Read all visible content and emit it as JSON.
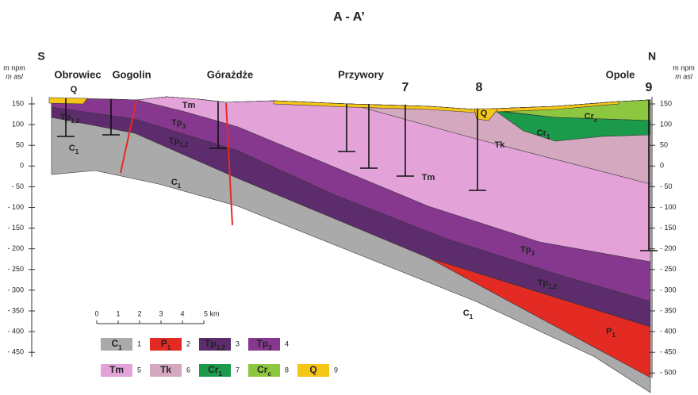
{
  "title": "A - A’",
  "left_axis": {
    "direction": "S",
    "unit": "m npm",
    "unit_alt": "m asl",
    "ticks": [
      "150",
      "100",
      "50",
      "0",
      "- 50",
      "- 100",
      "- 150",
      "- 200",
      "- 250",
      "- 300",
      "- 350",
      "- 400",
      "- 450"
    ]
  },
  "right_axis": {
    "direction": "N",
    "unit": "m npm",
    "unit_alt": "m asl",
    "ticks": [
      "150",
      "100",
      "50",
      "0",
      "- 50",
      "- 100",
      "- 150",
      "- 200",
      "- 250",
      "- 300",
      "- 350",
      "- 400",
      "- 450",
      "- 500"
    ]
  },
  "places": [
    "Obrowiec",
    "Gogolin",
    "Górażdże",
    "Przywory",
    "Opole"
  ],
  "wells": [
    "7",
    "8",
    "9"
  ],
  "map_labels": [
    {
      "base": "Q"
    },
    {
      "base": "Tp",
      "sub": "1,2"
    },
    {
      "base": "C",
      "sub": "1"
    },
    {
      "base": "Tm"
    },
    {
      "base": "Tp",
      "sub": "3"
    },
    {
      "base": "Tp",
      "sub": "1,2"
    },
    {
      "base": "C",
      "sub": "1"
    },
    {
      "base": "Tm"
    },
    {
      "base": "Tk"
    },
    {
      "base": "Q"
    },
    {
      "base": "Cr",
      "sub": "c"
    },
    {
      "base": "Cr",
      "sub": "1"
    },
    {
      "base": "Tp",
      "sub": "3"
    },
    {
      "base": "Tp",
      "sub": "1,2"
    },
    {
      "base": "C",
      "sub": "1"
    },
    {
      "base": "P",
      "sub": "1"
    }
  ],
  "scale": [
    "0",
    "1",
    "2",
    "3",
    "4",
    "5 km"
  ],
  "legend": [
    {
      "symbol": {
        "base": "C",
        "sub": "1"
      },
      "number": "1"
    },
    {
      "symbol": {
        "base": "P",
        "sub": "1"
      },
      "number": "2"
    },
    {
      "symbol": {
        "base": "Tp",
        "sub": "1,2"
      },
      "number": "3"
    },
    {
      "symbol": {
        "base": "Tp",
        "sub": "3"
      },
      "number": "4"
    },
    {
      "symbol": {
        "base": "Tm"
      },
      "number": "5"
    },
    {
      "symbol": {
        "base": "Tk"
      },
      "number": "6"
    },
    {
      "symbol": {
        "base": "Cr",
        "sub": "1"
      },
      "number": "7"
    },
    {
      "symbol": {
        "base": "Cr",
        "sub": "c"
      },
      "number": "8"
    },
    {
      "symbol": {
        "base": "Q"
      },
      "number": "9"
    }
  ]
}
